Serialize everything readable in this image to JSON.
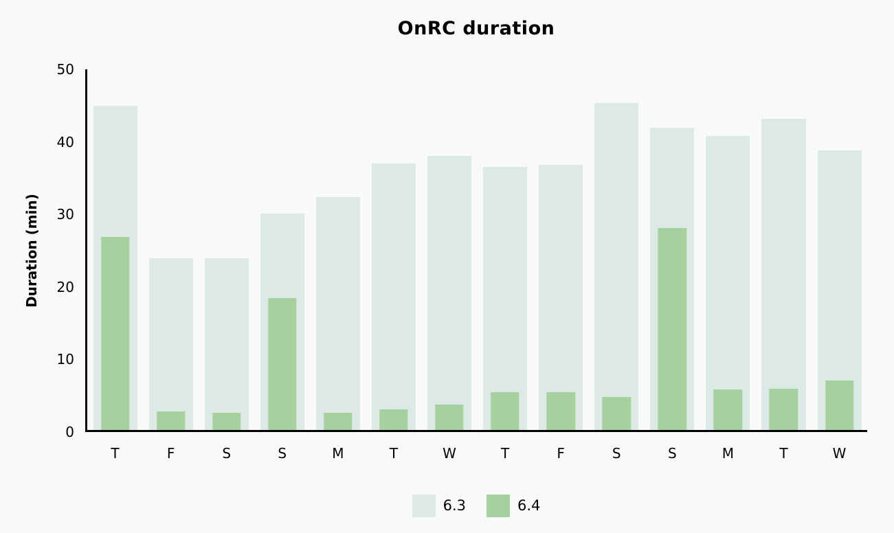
{
  "chart_data": {
    "type": "bar",
    "title": "OnRC duration",
    "ylabel": "Duration (min)",
    "xlabel": "",
    "ylim": [
      0,
      50
    ],
    "yticks": [
      0,
      10,
      20,
      30,
      40,
      50
    ],
    "grid": false,
    "legend_position": "bottom-center",
    "bar_layout": "overlaid",
    "categories": [
      "T",
      "F",
      "S",
      "S",
      "M",
      "T",
      "W",
      "T",
      "F",
      "S",
      "S",
      "M",
      "T",
      "W"
    ],
    "series": [
      {
        "name": "6.3",
        "color": "#dce9e6",
        "values": [
          45.0,
          23.8,
          23.8,
          30.0,
          32.3,
          37.0,
          38.0,
          36.5,
          36.8,
          45.3,
          41.9,
          40.8,
          43.1,
          38.8
        ]
      },
      {
        "name": "6.4",
        "color": "#a6d09d",
        "values": [
          26.8,
          2.6,
          2.4,
          18.3,
          2.4,
          2.9,
          3.5,
          5.2,
          5.2,
          4.6,
          28.0,
          5.6,
          5.7,
          6.9
        ]
      }
    ]
  },
  "colors": {
    "background": "#f8faf9",
    "axis": "#000000",
    "text": "#000000"
  }
}
